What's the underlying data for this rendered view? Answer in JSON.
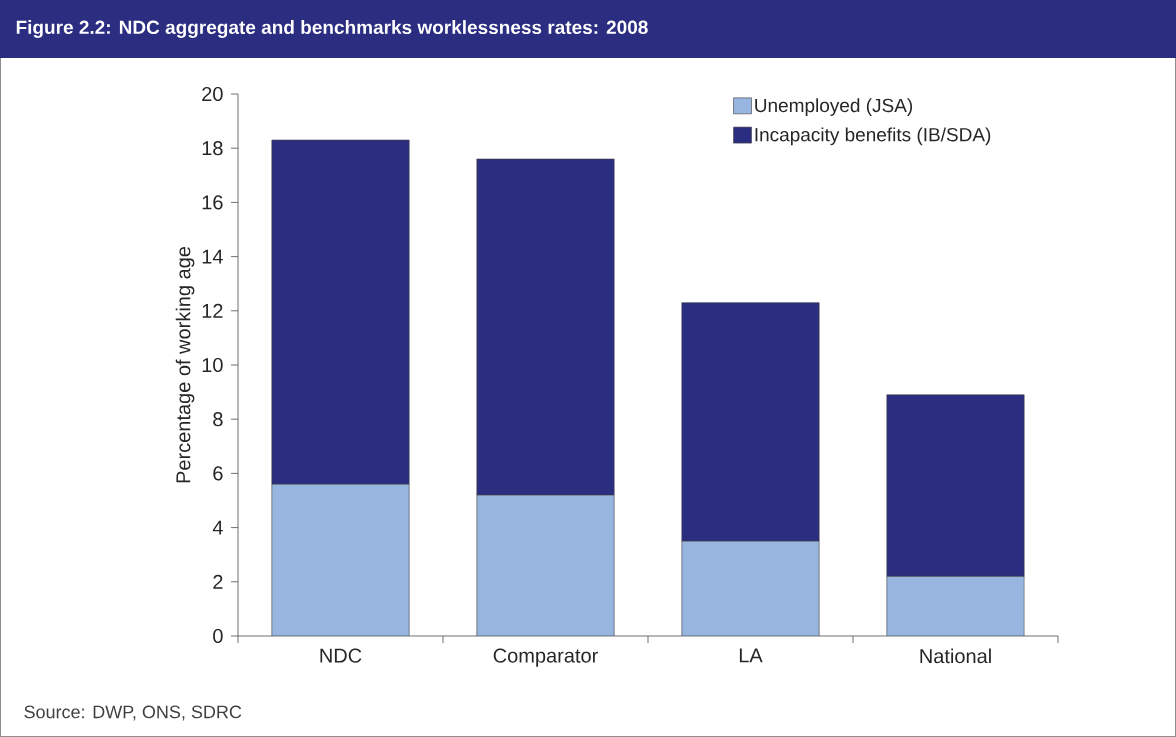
{
  "chart_data": {
    "type": "bar",
    "stacked": true,
    "title": "Figure 2.2: NDC aggregate and benchmarks worklessness rates: 2008",
    "ylabel": "Percentage of working age",
    "categories": [
      "NDC",
      "Comparator",
      "LA",
      "National"
    ],
    "series": [
      {
        "name": "Unemployed (JSA)",
        "color": "#97b5de",
        "values": [
          5.6,
          5.2,
          3.5,
          2.2
        ]
      },
      {
        "name": "Incapacity benefits (IB/SDA)",
        "color": "#2b2d80",
        "values": [
          12.7,
          12.4,
          8.8,
          6.7
        ]
      }
    ],
    "ylim": [
      0,
      20
    ],
    "yticks": [
      0,
      2,
      4,
      6,
      8,
      10,
      12,
      14,
      16,
      18,
      20
    ],
    "legend": "top right",
    "annotations": [
      "Source: DWP, ONS, SDRC"
    ]
  }
}
